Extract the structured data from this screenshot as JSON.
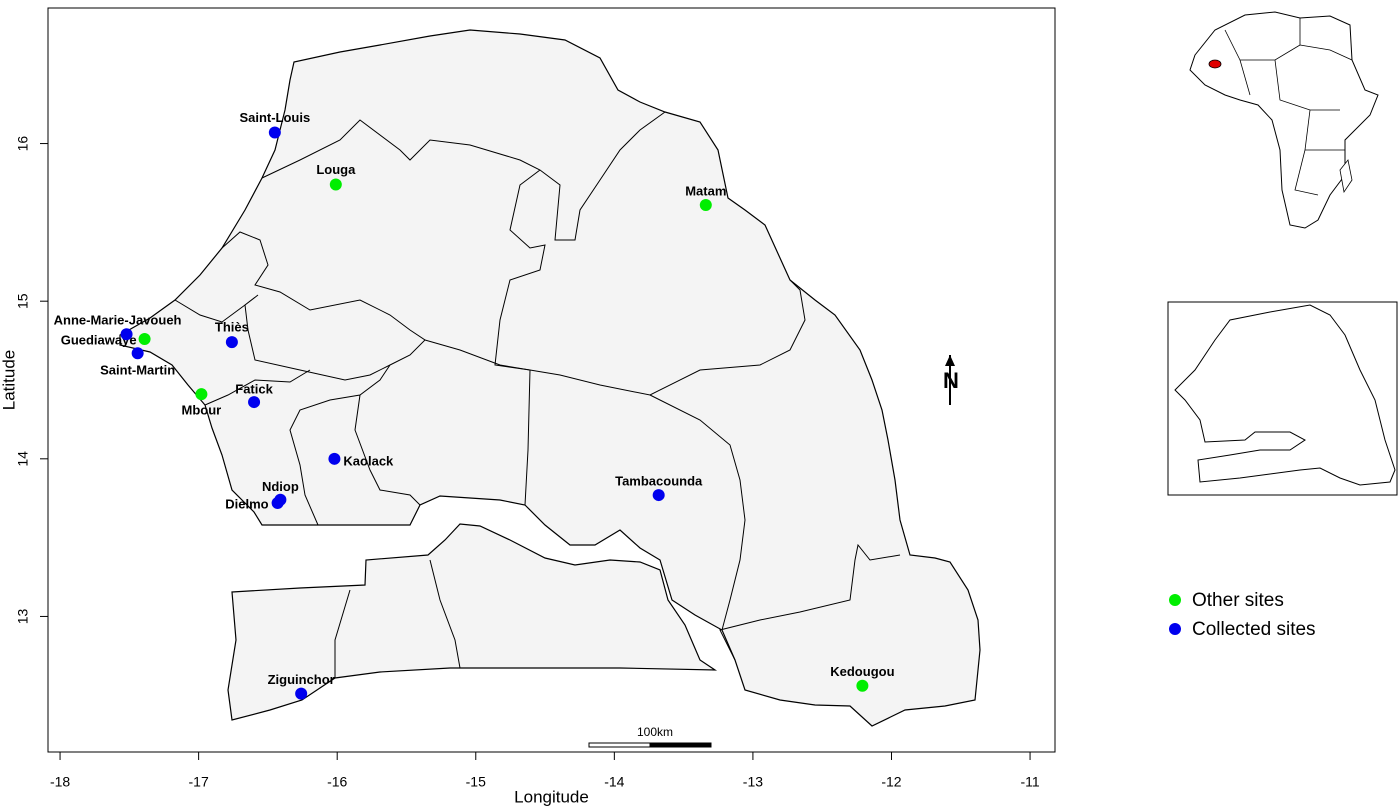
{
  "chart_data": {
    "type": "scatter",
    "xlabel": "Longitude",
    "ylabel": "Latitude",
    "xlim": [
      -18.087,
      -10.82
    ],
    "ylim": [
      12.14,
      16.86
    ],
    "xticks": [
      -18,
      -17,
      -16,
      -15,
      -14,
      -13,
      -12,
      -11
    ],
    "yticks": [
      13,
      14,
      15,
      16
    ],
    "north_label": "N",
    "scale_label": "100km",
    "series": [
      {
        "name": "Other sites",
        "color": "#00ee00",
        "labels": [
          "Louga",
          "Matam",
          "Guediawaye",
          "Mbour",
          "Kedougou"
        ],
        "x": [
          -16.01,
          -13.34,
          -17.39,
          -16.98,
          -12.21
        ],
        "y": [
          15.74,
          15.61,
          14.76,
          14.41,
          12.56
        ]
      },
      {
        "name": "Collected sites",
        "color": "#0000ee",
        "labels": [
          "Saint-Louis",
          "Anne-Marie-Javoueh",
          "Saint-Martin",
          "Thiès",
          "Fatick",
          "Kaolack",
          "Ndiop",
          "Dielmo",
          "Tambacounda",
          "Ziguinchor"
        ],
        "x": [
          -16.45,
          -17.52,
          -17.44,
          -16.76,
          -16.6,
          -16.02,
          -16.41,
          -16.43,
          -13.68,
          -16.26
        ],
        "y": [
          16.07,
          14.79,
          14.67,
          14.74,
          14.36,
          14.0,
          13.74,
          13.72,
          13.77,
          12.51
        ]
      }
    ]
  }
}
